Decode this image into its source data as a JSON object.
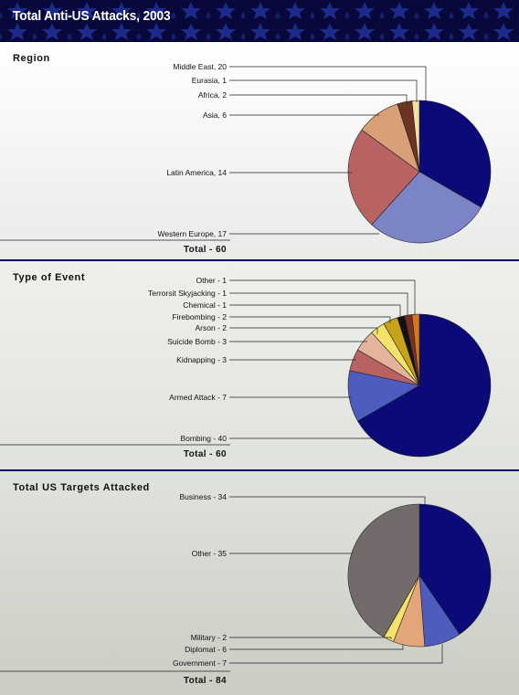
{
  "header": {
    "title": "Total Anti-US Attacks, 2003"
  },
  "chart_data": [
    {
      "type": "pie",
      "title": "Region",
      "total_label": "Total - 60",
      "slices": [
        {
          "label": "Western Europe, 17",
          "name": "Western Europe",
          "value": 17,
          "color": "#7b84c6"
        },
        {
          "label": "Latin America, 14",
          "name": "Latin America",
          "value": 14,
          "color": "#b86262"
        },
        {
          "label": "Asia, 6",
          "name": "Asia",
          "value": 6,
          "color": "#d9a077"
        },
        {
          "label": "Africa, 2",
          "name": "Africa",
          "value": 2,
          "color": "#6b3424"
        },
        {
          "label": "Eurasia, 1",
          "name": "Eurasia",
          "value": 1,
          "color": "#f3e0a0"
        },
        {
          "label": "Middle East, 20",
          "name": "Middle East",
          "value": 20,
          "color": "#0a0a78"
        }
      ]
    },
    {
      "type": "pie",
      "title": "Type of Event",
      "total_label": "Total - 60",
      "slices": [
        {
          "label": "Bombing - 40",
          "name": "Bombing",
          "value": 40,
          "color": "#0a0a78"
        },
        {
          "label": "Armed Attack - 7",
          "name": "Armed Attack",
          "value": 7,
          "color": "#4f5cbf"
        },
        {
          "label": "Kidnapping - 3",
          "name": "Kidnapping",
          "value": 3,
          "color": "#b86262"
        },
        {
          "label": "Suicide Bomb - 3",
          "name": "Suicide Bomb",
          "value": 3,
          "color": "#e3b49a"
        },
        {
          "label": "Arson - 2",
          "name": "Arson",
          "value": 2,
          "color": "#f4e36a"
        },
        {
          "label": "Firebombing - 2",
          "name": "Firebombing",
          "value": 2,
          "color": "#c9a21c"
        },
        {
          "label": "Chemical - 1",
          "name": "Chemical",
          "value": 1,
          "color": "#111111"
        },
        {
          "label": "Terrorsit Skyjacking - 1",
          "name": "Terrorsit Skyjacking",
          "value": 1,
          "color": "#7a3020"
        },
        {
          "label": "Other - 1",
          "name": "Other",
          "value": 1,
          "color": "#d4781e"
        }
      ]
    },
    {
      "type": "pie",
      "title": "Total US Targets Attacked",
      "total_label": "Total - 84",
      "slices": [
        {
          "label": "Business - 34",
          "name": "Business",
          "value": 34,
          "color": "#0a0a78"
        },
        {
          "label": "Government - 7",
          "name": "Government",
          "value": 7,
          "color": "#4f5cbf"
        },
        {
          "label": "Diplomat - 6",
          "name": "Diplomat",
          "value": 6,
          "color": "#e3a67a"
        },
        {
          "label": "Military - 2",
          "name": "Military",
          "value": 2,
          "color": "#f4e36a"
        },
        {
          "label": "Other - 35",
          "name": "Other",
          "value": 35,
          "color": "#736b6b"
        }
      ]
    }
  ]
}
